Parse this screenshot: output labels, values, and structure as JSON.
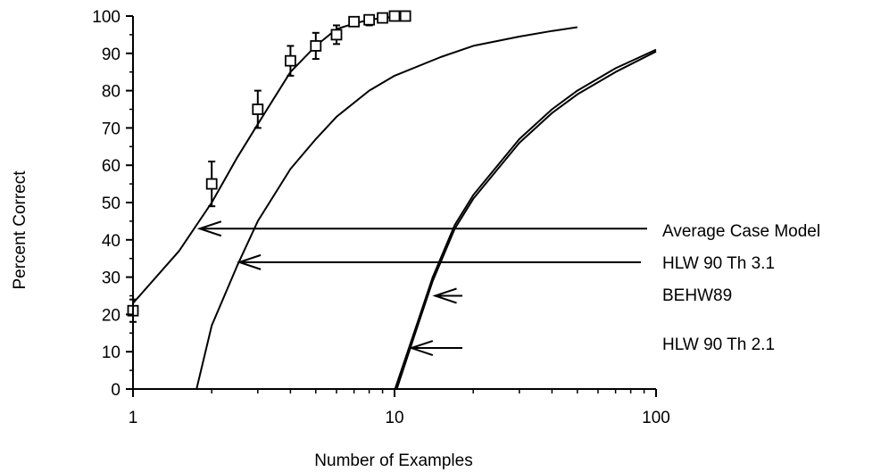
{
  "chart_data": {
    "type": "line",
    "title": "",
    "xlabel": "Number of Examples",
    "ylabel": "Percent Correct",
    "xscale": "log",
    "xlim": [
      1,
      100
    ],
    "ylim": [
      0,
      100
    ],
    "xticks": [
      1,
      10,
      100
    ],
    "xtick_labels": [
      "1",
      "10",
      "100"
    ],
    "yticks": [
      0,
      10,
      20,
      30,
      40,
      50,
      60,
      70,
      80,
      90,
      100
    ],
    "ytick_labels": [
      "0",
      "10",
      "20",
      "30",
      "40",
      "50",
      "60",
      "70",
      "80",
      "90",
      "100"
    ],
    "grid": false,
    "series": [
      {
        "name": "",
        "style": "markers-with-error-bars",
        "marker": "open-square",
        "points": [
          {
            "x": 1,
            "y": 21,
            "err": 3
          },
          {
            "x": 2,
            "y": 55,
            "err": 6
          },
          {
            "x": 3,
            "y": 75,
            "err": 5
          },
          {
            "x": 4,
            "y": 88,
            "err": 4
          },
          {
            "x": 5,
            "y": 92,
            "err": 3.5
          },
          {
            "x": 6,
            "y": 95,
            "err": 2.5
          },
          {
            "x": 7,
            "y": 98.5,
            "err": 0
          },
          {
            "x": 8,
            "y": 99,
            "err": 1.5
          },
          {
            "x": 9,
            "y": 99.5,
            "err": 0
          },
          {
            "x": 10,
            "y": 100,
            "err": 0
          },
          {
            "x": 11,
            "y": 100,
            "err": 0
          }
        ]
      },
      {
        "name": "Average Case Model",
        "style": "line",
        "x": [
          1,
          1.5,
          2,
          2.5,
          3,
          4,
          5,
          6,
          7,
          8,
          9,
          10
        ],
        "y": [
          23,
          37,
          50,
          62,
          71,
          85,
          92,
          96.5,
          98,
          99,
          99.5,
          99.8
        ]
      },
      {
        "name": "HLW 90 Th 3.1",
        "style": "line",
        "x": [
          1.75,
          2,
          2.5,
          3,
          4,
          5,
          6,
          8,
          10,
          15,
          20,
          30,
          40,
          50
        ],
        "y": [
          0,
          17,
          33,
          45,
          59,
          67,
          73,
          80,
          84,
          89,
          92,
          94.5,
          96,
          97
        ]
      },
      {
        "name": "BEHW89",
        "style": "line",
        "x": [
          10.2,
          12,
          14,
          17,
          20,
          30,
          40,
          50,
          70,
          100
        ],
        "y": [
          0,
          15,
          29,
          43,
          51,
          66,
          74,
          79,
          85,
          90.5
        ]
      },
      {
        "name": "HLW 90 Th 2.1",
        "style": "line",
        "x": [
          10.05,
          12,
          14,
          17,
          20,
          30,
          40,
          50,
          70,
          100
        ],
        "y": [
          0,
          16,
          30,
          44,
          52,
          67,
          75,
          80,
          86,
          91
        ]
      }
    ],
    "annotations": [
      {
        "text": "Average Case Model",
        "arrow_to": {
          "x": 1.8,
          "y": 43
        }
      },
      {
        "text": "HLW 90 Th 3.1",
        "arrow_to": {
          "x": 2.55,
          "y": 34
        }
      },
      {
        "text": "BEHW89",
        "arrow_to": {
          "x": 14.3,
          "y": 25
        }
      },
      {
        "text": "HLW 90 Th 2.1",
        "arrow_to": {
          "x": 11.6,
          "y": 11
        }
      }
    ]
  }
}
